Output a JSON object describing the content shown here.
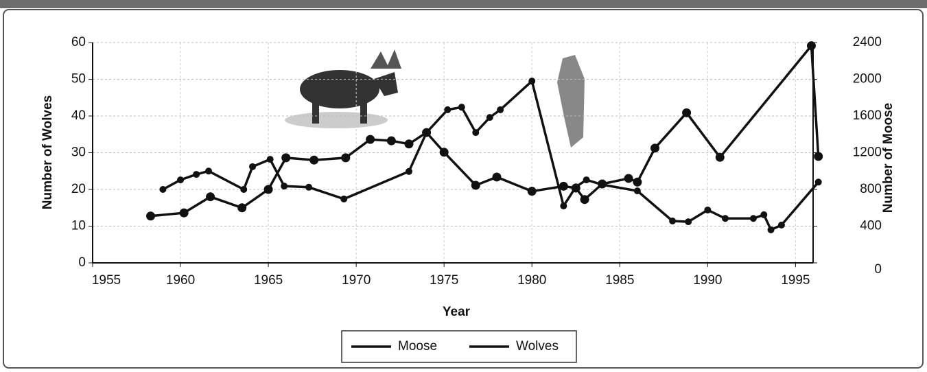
{
  "chart_data": {
    "type": "line",
    "xlabel": "Year",
    "ylabel": "Number of Wolves",
    "y2label": "Number of Moose",
    "xlim": [
      1955,
      1996
    ],
    "xticks": [
      1955,
      1960,
      1965,
      1970,
      1975,
      1980,
      1985,
      1990,
      1995
    ],
    "ylim": [
      0,
      60
    ],
    "yticks": [
      0,
      10,
      20,
      30,
      40,
      50,
      60
    ],
    "y2lim": [
      0,
      2400
    ],
    "y2ticks": [
      0,
      400,
      800,
      1200,
      1600,
      2000,
      2400
    ],
    "grid": true,
    "legend": "bottom",
    "series": [
      {
        "name": "Moose",
        "color": "#111111",
        "axis": "y2",
        "x": [
          1958.3,
          1960.2,
          1961.7,
          1963.5,
          1965,
          1966,
          1967.6,
          1969.4,
          1970.8,
          1972,
          1973,
          1974,
          1975,
          1976.8,
          1978,
          1980,
          1981.8,
          1982.5,
          1983,
          1984,
          1985.5,
          1986,
          1987,
          1988.8,
          1990.7,
          1995.9,
          1996.3
        ],
        "values": [
          510,
          545,
          720,
          600,
          800,
          1145,
          1120,
          1145,
          1345,
          1330,
          1295,
          1420,
          1205,
          845,
          935,
          780,
          835,
          815,
          690,
          860,
          920,
          880,
          1250,
          1635,
          1150,
          2365,
          1160
        ]
      },
      {
        "name": "Wolves",
        "color": "#111111",
        "x": [
          1959,
          1960,
          1960.9,
          1961.6,
          1963.6,
          1964.1,
          1965.1,
          1965.9,
          1967.3,
          1969.3,
          1973,
          1974,
          1975.2,
          1976,
          1976.8,
          1977.6,
          1978.2,
          1980,
          1981.8,
          1982.5,
          1983.1,
          1984,
          1986,
          1988,
          1988.9,
          1990,
          1991,
          1992.6,
          1993.2,
          1993.6,
          1994.2,
          1996.3
        ],
        "values": [
          20,
          22.6,
          24.1,
          25,
          20,
          26.2,
          28.2,
          20.9,
          20.6,
          17.4,
          24.9,
          35.5,
          41.7,
          42.4,
          35.5,
          39.6,
          41.7,
          49.5,
          15.5,
          20.7,
          22.6,
          21.3,
          19.6,
          11.4,
          11.2,
          14.4,
          12.1,
          12.1,
          13.1,
          9,
          10.3,
          22
        ]
      }
    ]
  }
}
